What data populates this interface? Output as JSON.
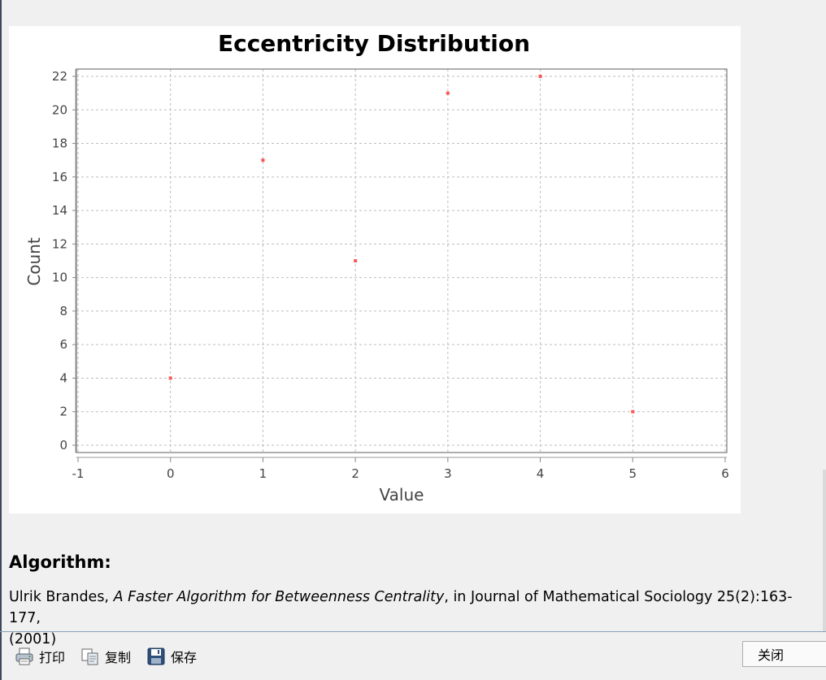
{
  "chart_data": {
    "type": "scatter",
    "title": "Eccentricity Distribution",
    "xlabel": "Value",
    "ylabel": "Count",
    "xlim": [
      -1,
      6
    ],
    "ylim": [
      0,
      22
    ],
    "xticks": [
      "-1",
      "0",
      "1",
      "2",
      "3",
      "4",
      "5",
      "6"
    ],
    "yticks": [
      "0",
      "2",
      "4",
      "6",
      "8",
      "10",
      "12",
      "14",
      "16",
      "18",
      "20",
      "22"
    ],
    "grid": true,
    "point_color": "#ff5555",
    "points": [
      {
        "x": 0,
        "y": 4
      },
      {
        "x": 1,
        "y": 17
      },
      {
        "x": 2,
        "y": 11
      },
      {
        "x": 3,
        "y": 21
      },
      {
        "x": 4,
        "y": 22
      },
      {
        "x": 5,
        "y": 2
      }
    ]
  },
  "algorithm": {
    "heading": "Algorithm:",
    "author": "Ulrik Brandes, ",
    "paper_title": "A Faster Algorithm for Betweenness Centrality",
    "journal": ", in Journal of Mathematical Sociology 25(2):163-177,",
    "year": "(2001)"
  },
  "toolbar": {
    "print_label": "打印",
    "print_icon": "printer-icon",
    "copy_label": "复制",
    "copy_icon": "copy-icon",
    "save_label": "保存",
    "save_icon": "floppy-disk-icon",
    "close_label": "关闭"
  }
}
